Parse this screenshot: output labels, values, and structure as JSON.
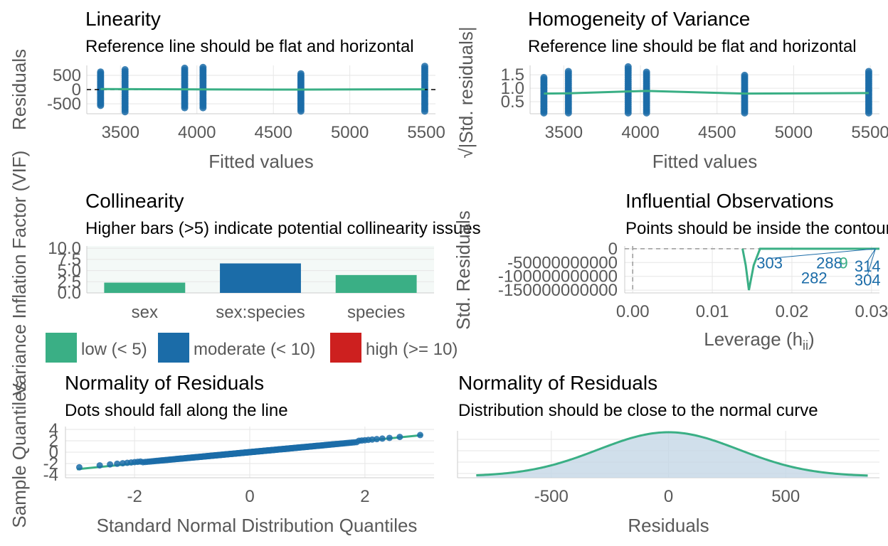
{
  "colors": {
    "green": "#3aaf85",
    "blue": "#1b6ca8",
    "red": "#cd201f",
    "grid": "#e6e6e6",
    "text": "#000000",
    "axis_text": "#595959",
    "panel_bg": "#f4f9f7",
    "density_fill": "#c4d7e6"
  },
  "chart_data": [
    {
      "id": "linearity",
      "type": "scatter",
      "title": "Linearity",
      "subtitle": "Reference line should be flat and horizontal",
      "xlabel": "Fitted values",
      "ylabel": "Residuals",
      "xlim": [
        3280,
        5560
      ],
      "ylim": [
        -850,
        850
      ],
      "xticks": [
        3500,
        4000,
        4500,
        5000,
        5500
      ],
      "yticks": [
        -500,
        0,
        500
      ],
      "ytick_labels": [
        "-500",
        "0",
        "500"
      ],
      "reference_line": 0,
      "clusters": [
        {
          "x": 3370,
          "ymin": -560,
          "ymax": 620
        },
        {
          "x": 3530,
          "ymin": -780,
          "ymax": 700
        },
        {
          "x": 3920,
          "ymin": -640,
          "ymax": 820
        },
        {
          "x": 4040,
          "ymin": -640,
          "ymax": 780
        },
        {
          "x": 4680,
          "ymin": -760,
          "ymax": 620
        },
        {
          "x": 5490,
          "ymin": -760,
          "ymax": 820
        }
      ],
      "smooth": [
        [
          3370,
          20
        ],
        [
          3530,
          15
        ],
        [
          3920,
          10
        ],
        [
          4040,
          5
        ],
        [
          4680,
          0
        ],
        [
          5490,
          10
        ]
      ]
    },
    {
      "id": "homogeneity",
      "type": "scatter",
      "title": "Homogeneity of Variance",
      "subtitle": "Reference line should be flat and horizontal",
      "xlabel": "Fitted values",
      "ylabel": "√|Std. residuals|",
      "xlim": [
        3280,
        5560
      ],
      "ylim": [
        0.05,
        1.85
      ],
      "xticks": [
        3500,
        4000,
        4500,
        5000,
        5500
      ],
      "yticks": [
        0.5,
        1.0,
        1.5
      ],
      "ytick_labels": [
        "0.5",
        "1.0",
        "1.5"
      ],
      "clusters": [
        {
          "x": 3370,
          "ymin": 0.08,
          "ymax": 1.4
        },
        {
          "x": 3530,
          "ymin": 0.08,
          "ymax": 1.7
        },
        {
          "x": 3920,
          "ymin": 0.08,
          "ymax": 1.8
        },
        {
          "x": 4040,
          "ymin": 0.08,
          "ymax": 1.6
        },
        {
          "x": 4680,
          "ymin": 0.08,
          "ymax": 1.55
        },
        {
          "x": 5490,
          "ymin": 0.08,
          "ymax": 1.7
        }
      ],
      "smooth": [
        [
          3370,
          0.8
        ],
        [
          3530,
          0.81
        ],
        [
          3920,
          0.88
        ],
        [
          4040,
          0.9
        ],
        [
          4680,
          0.8
        ],
        [
          5490,
          0.82
        ]
      ]
    },
    {
      "id": "collinearity",
      "type": "bar",
      "title": "Collinearity",
      "subtitle": "Higher bars (>5) indicate potential collinearity issues",
      "xlabel": "",
      "ylabel": "Variance Inflation Factor (VIF)",
      "categories": [
        "sex",
        "sex:species",
        "species"
      ],
      "values": [
        2.3,
        6.6,
        4.0
      ],
      "bar_classes": [
        "low",
        "moderate",
        "low"
      ],
      "ylim": [
        0,
        10.5
      ],
      "yticks": [
        0,
        2.5,
        5,
        7.5,
        10
      ],
      "ytick_labels": [
        "0.0",
        "2.5",
        "5.0",
        "7.5",
        "10.0"
      ],
      "legend": [
        {
          "label": "low (< 5)",
          "color_key": "green"
        },
        {
          "label": "moderate (< 10)",
          "color_key": "blue"
        },
        {
          "label": "high (>= 10)",
          "color_key": "red"
        }
      ]
    },
    {
      "id": "influential",
      "type": "line",
      "title": "Influential Observations",
      "subtitle": "Points should be inside the contour lines",
      "xlabel": "Leverage (h",
      "xlabel_sub": "ii",
      "xlabel_end": ")",
      "ylabel": "Std. Residuals",
      "xlim": [
        -0.001,
        0.031
      ],
      "ylim": [
        -160000000000,
        10000000000
      ],
      "xticks": [
        0.0,
        0.01,
        0.02,
        0.03
      ],
      "xtick_labels": [
        "0.00",
        "0.01",
        "0.02",
        "0.03"
      ],
      "yticks": [
        0,
        -50000000000,
        -100000000000,
        -150000000000
      ],
      "ytick_labels": [
        "0",
        "-50000000000",
        "-100000000000",
        "-150000000000"
      ],
      "curve": [
        [
          0.0138,
          0
        ],
        [
          0.0142,
          -60000000000
        ],
        [
          0.0146,
          -150000000000
        ],
        [
          0.0152,
          -60000000000
        ],
        [
          0.016,
          0
        ],
        [
          0.031,
          0
        ]
      ],
      "point_labels": [
        {
          "label": "303",
          "x": 0.0172,
          "y": -50000000000,
          "color_key": "blue"
        },
        {
          "label": "288",
          "x": 0.0247,
          "y": -50000000000,
          "color_key": "blue"
        },
        {
          "label": "9",
          "x": 0.0265,
          "y": -50000000000,
          "color_key": "green"
        },
        {
          "label": "282",
          "x": 0.0228,
          "y": -105000000000,
          "color_key": "blue"
        },
        {
          "label": "314",
          "x": 0.0295,
          "y": -62000000000,
          "color_key": "blue"
        },
        {
          "label": "304",
          "x": 0.0295,
          "y": -112000000000,
          "color_key": "blue"
        }
      ]
    },
    {
      "id": "qq",
      "type": "scatter",
      "title": "Normality of Residuals",
      "subtitle": "Dots should fall along the line",
      "xlabel": "Standard Normal Distribution Quantiles",
      "ylabel": "Sample Quantiles",
      "xlim": [
        -3.2,
        3.2
      ],
      "ylim": [
        -4.5,
        4.5
      ],
      "xticks": [
        -2,
        0,
        2
      ],
      "yticks": [
        -4,
        -2,
        0,
        2,
        4
      ],
      "ytick_labels": [
        "-4",
        "-2",
        "0",
        "2",
        "4"
      ]
    },
    {
      "id": "density",
      "type": "area",
      "title": "Normality of Residuals",
      "subtitle": "Distribution should be close to the normal curve",
      "xlabel": "Residuals",
      "ylabel": "",
      "xlim": [
        -900,
        900
      ],
      "xticks": [
        -500,
        0,
        500
      ],
      "sd": 300,
      "range": [
        -820,
        850
      ]
    }
  ]
}
